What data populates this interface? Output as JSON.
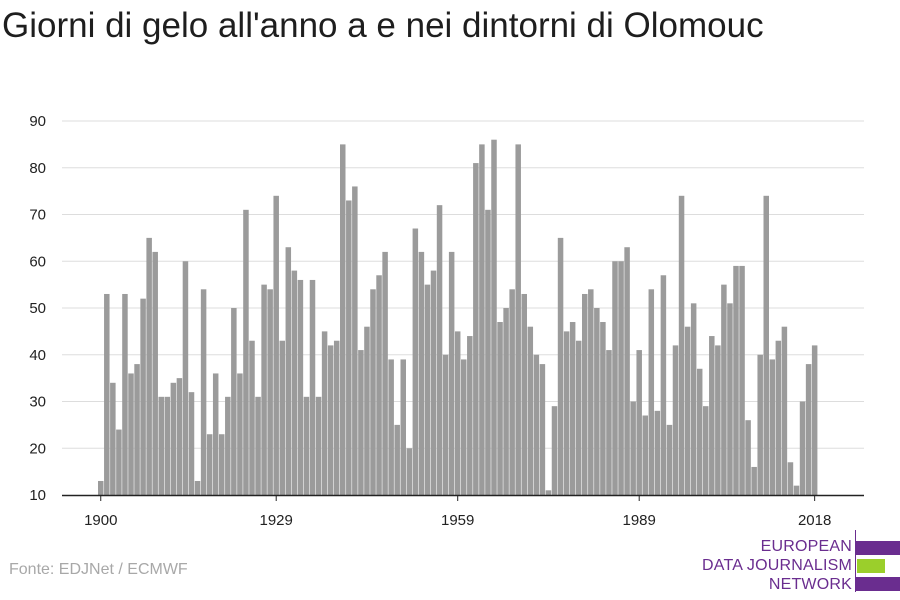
{
  "title": "Giorni di gelo all'anno a e nei dintorni di Olomouc",
  "source": "Fonte: EDJNet / ECMWF",
  "logo": {
    "lines": [
      "EUROPEAN",
      "DATA JOURNALISM",
      "NETWORK"
    ],
    "colors": {
      "purple": "#6a2d8f",
      "green": "#9bcf2b"
    }
  },
  "colors": {
    "bar": "#9b9b9b",
    "grid": "#dddddd",
    "axis": "#222222"
  },
  "chart_data": {
    "type": "bar",
    "title": "Giorni di gelo all'anno a e nei dintorni di Olomouc",
    "xlabel": "",
    "ylabel": "",
    "ylim": [
      10,
      90
    ],
    "yticks": [
      10,
      20,
      30,
      40,
      50,
      60,
      70,
      80,
      90
    ],
    "xticks": [
      1900,
      1929,
      1959,
      1989,
      2018
    ],
    "grid": true,
    "start_year": 1900,
    "end_year": 2018,
    "values": [
      13,
      53,
      34,
      24,
      53,
      36,
      38,
      52,
      65,
      62,
      31,
      31,
      34,
      35,
      60,
      32,
      13,
      54,
      23,
      36,
      23,
      31,
      50,
      36,
      71,
      43,
      31,
      55,
      54,
      74,
      43,
      63,
      58,
      56,
      31,
      56,
      31,
      45,
      42,
      43,
      85,
      73,
      76,
      41,
      46,
      54,
      57,
      62,
      39,
      25,
      39,
      20,
      67,
      62,
      55,
      58,
      72,
      40,
      62,
      45,
      39,
      44,
      81,
      85,
      71,
      86,
      47,
      50,
      54,
      85,
      53,
      46,
      40,
      38,
      11,
      29,
      65,
      45,
      47,
      43,
      53,
      54,
      50,
      47,
      41,
      60,
      60,
      63,
      30,
      41,
      27,
      54,
      28,
      57,
      25,
      42,
      74,
      46,
      51,
      37,
      29,
      44,
      42,
      55,
      51,
      59,
      59,
      26,
      16,
      40,
      74,
      39,
      43,
      46,
      17,
      12,
      30,
      38,
      42
    ]
  }
}
